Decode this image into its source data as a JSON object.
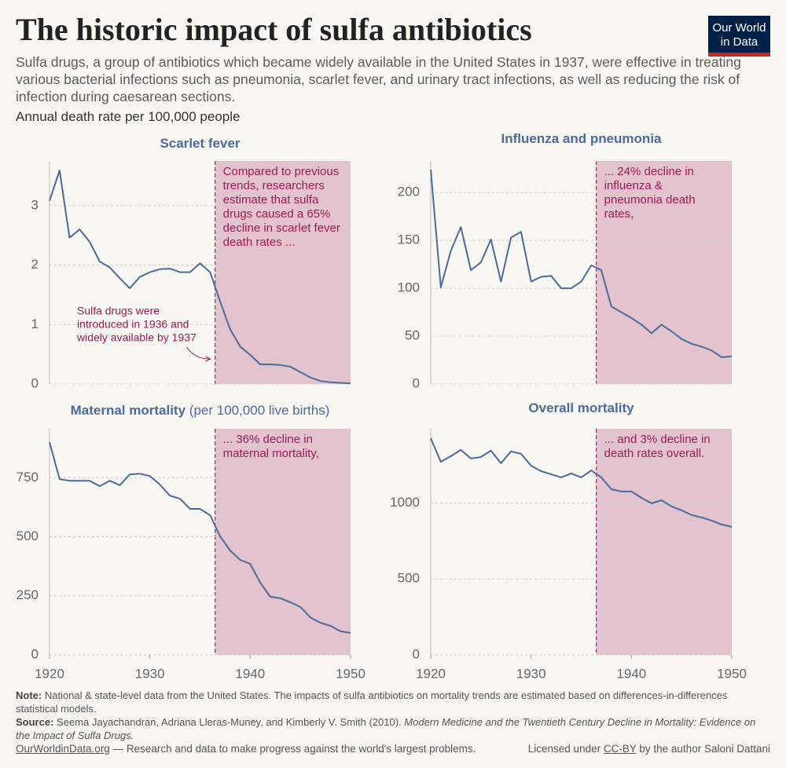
{
  "header": {
    "title": "The historic impact of sulfa antibiotics",
    "subtitle": "Sulfa drugs, a group of antibiotics which became widely available in the United States in 1937, were effective in treating various bacterial infections such as pneumonia, scarlet fever, and urinary tract infections, as well as reducing the risk of infection during caesarean sections.",
    "unit": "Annual death rate per 100,000 people",
    "logo": [
      "Our World",
      "in Data"
    ]
  },
  "chart_data": [
    {
      "type": "line",
      "title": "Scarlet fever",
      "color": "#4c6a9c",
      "x": [
        1920,
        1921,
        1922,
        1923,
        1924,
        1925,
        1926,
        1927,
        1928,
        1929,
        1930,
        1931,
        1932,
        1933,
        1934,
        1935,
        1936,
        1937,
        1938,
        1939,
        1940,
        1941,
        1942,
        1943,
        1944,
        1945,
        1946,
        1947,
        1948,
        1949,
        1950
      ],
      "values": [
        3.08,
        3.59,
        2.46,
        2.6,
        2.39,
        2.06,
        1.96,
        1.78,
        1.61,
        1.8,
        1.88,
        1.93,
        1.94,
        1.88,
        1.88,
        2.03,
        1.88,
        1.39,
        0.92,
        0.63,
        0.49,
        0.33,
        0.33,
        0.32,
        0.29,
        0.2,
        0.11,
        0.05,
        0.03,
        0.02,
        0.01
      ],
      "xlim": [
        1920,
        1950
      ],
      "ylim": [
        0,
        3.75
      ],
      "yticks": [
        0,
        1,
        2,
        3
      ],
      "grid": true,
      "highlight": {
        "from": 1936.5,
        "color": "#e3c3cd",
        "line_color": "#9b2d5c"
      },
      "annotation": [
        "Compared to previous",
        "trends, researchers",
        "estimate that sulfa",
        "drugs caused a 65%",
        "decline in scarlet fever",
        "death rates ..."
      ],
      "callout": [
        "Sulfa drugs were",
        "introduced in 1936 and",
        "widely available by 1937"
      ]
    },
    {
      "type": "line",
      "title": "Influenza and pneumonia",
      "color": "#4c6a9c",
      "x": [
        1920,
        1921,
        1922,
        1923,
        1924,
        1925,
        1926,
        1927,
        1928,
        1929,
        1930,
        1931,
        1932,
        1933,
        1934,
        1935,
        1936,
        1937,
        1938,
        1939,
        1940,
        1941,
        1942,
        1943,
        1944,
        1945,
        1946,
        1947,
        1948,
        1949,
        1950
      ],
      "values": [
        224,
        101,
        139,
        164,
        119,
        127,
        151,
        107,
        153,
        159,
        107,
        112,
        113,
        100,
        100,
        107,
        124,
        119,
        81,
        75,
        69,
        62,
        53,
        62,
        55,
        47,
        42,
        39,
        35,
        28,
        29
      ],
      "xlim": [
        1920,
        1950
      ],
      "ylim": [
        0,
        233
      ],
      "yticks": [
        0,
        50,
        100,
        150,
        200
      ],
      "grid": true,
      "highlight": {
        "from": 1936.5,
        "color": "#e3c3cd",
        "line_color": "#9b2d5c"
      },
      "annotation": [
        "... 24% decline in",
        "influenza &",
        "pneumonia death",
        "rates,"
      ]
    },
    {
      "type": "line",
      "title": "Maternal mortality",
      "subtitle": "(per 100,000 live births)",
      "color": "#4c6a9c",
      "x": [
        1920,
        1921,
        1922,
        1923,
        1924,
        1925,
        1926,
        1927,
        1928,
        1929,
        1930,
        1931,
        1932,
        1933,
        1934,
        1935,
        1936,
        1937,
        1938,
        1939,
        1940,
        1941,
        1942,
        1943,
        1944,
        1945,
        1946,
        1947,
        1948,
        1949,
        1950
      ],
      "values": [
        900,
        744,
        737,
        737,
        737,
        714,
        737,
        718,
        764,
        767,
        757,
        721,
        674,
        661,
        618,
        618,
        591,
        502,
        442,
        402,
        385,
        306,
        246,
        240,
        223,
        203,
        159,
        136,
        123,
        100,
        93
      ],
      "xlim": [
        1920,
        1950
      ],
      "ylim": [
        0,
        957
      ],
      "yticks": [
        0,
        250,
        500,
        750
      ],
      "xticks": [
        1920,
        1930,
        1940,
        1950
      ],
      "grid": true,
      "highlight": {
        "from": 1936.5,
        "color": "#e3c3cd",
        "line_color": "#9b2d5c"
      },
      "annotation": [
        "... 36% decline in",
        "maternal mortality,"
      ]
    },
    {
      "type": "line",
      "title": "Overall mortality",
      "color": "#4c6a9c",
      "x": [
        1920,
        1921,
        1922,
        1923,
        1924,
        1925,
        1926,
        1927,
        1928,
        1929,
        1930,
        1931,
        1932,
        1933,
        1934,
        1935,
        1936,
        1937,
        1938,
        1939,
        1940,
        1941,
        1942,
        1943,
        1944,
        1945,
        1946,
        1947,
        1948,
        1949,
        1950
      ],
      "values": [
        1426,
        1271,
        1307,
        1349,
        1292,
        1302,
        1344,
        1261,
        1339,
        1323,
        1245,
        1209,
        1189,
        1168,
        1194,
        1168,
        1214,
        1168,
        1090,
        1075,
        1075,
        1034,
        997,
        1018,
        977,
        951,
        920,
        904,
        884,
        858,
        842
      ],
      "xlim": [
        1920,
        1950
      ],
      "ylim": [
        0,
        1488
      ],
      "yticks": [
        0,
        500,
        1000
      ],
      "xticks": [
        1920,
        1930,
        1940,
        1950
      ],
      "grid": true,
      "highlight": {
        "from": 1936.5,
        "color": "#e3c3cd",
        "line_color": "#9b2d5c"
      },
      "annotation": [
        "... and 3% decline in",
        "death rates overall."
      ]
    }
  ],
  "footer": {
    "note": {
      "label": "Note:",
      "text": "National & state-level data from the United States. The impacts of sulfa antibiotics on mortality trends are estimated based on differences-in-differences statistical models."
    },
    "source": {
      "label": "Source:",
      "text": "Seema Jayachandran, Adriana Lleras-Muney, and Kimberly V. Smith (2010).",
      "title": "Modern Medicine and the Twentieth Century Decline in Mortality: Evidence on the Impact of Sulfa Drugs."
    },
    "site": "OurWorldinData.org",
    "tagline": "— Research and data to make progress against the world's largest problems.",
    "license": {
      "before": "Licensed under",
      "link": "CC-BY",
      "after": "by the author Saloni Dattani"
    }
  }
}
